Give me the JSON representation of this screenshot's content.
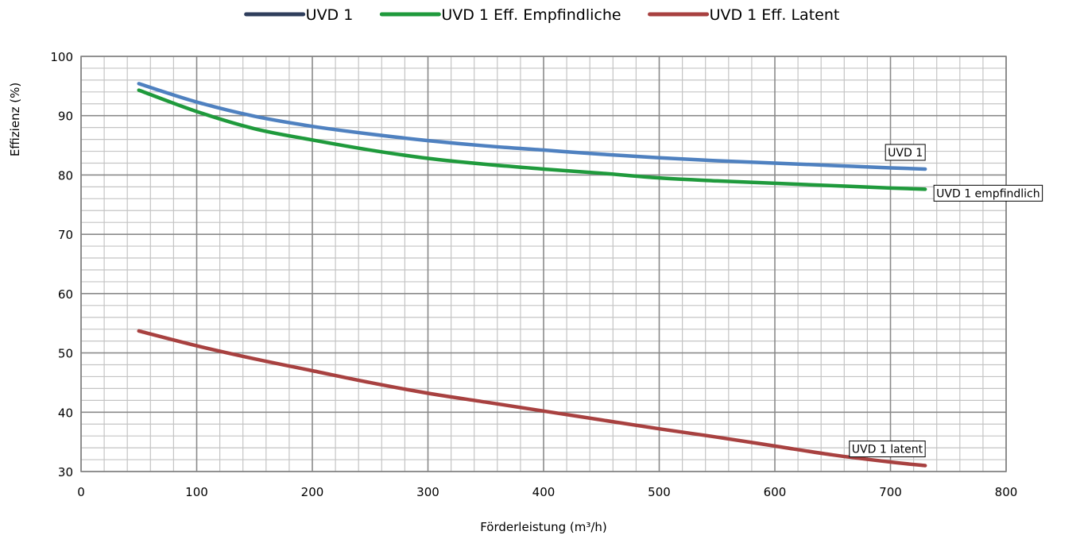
{
  "chart_data": {
    "type": "line",
    "xlabel": "Förderleistung (m³/h)",
    "ylabel": "Effizienz (%)",
    "xlim": [
      0,
      800
    ],
    "ylim": [
      30,
      100
    ],
    "x_ticks": [
      0,
      100,
      200,
      300,
      400,
      500,
      600,
      700,
      800
    ],
    "y_ticks": [
      30,
      40,
      50,
      60,
      70,
      80,
      90,
      100
    ],
    "grid": true,
    "legend_position": "top",
    "legend": [
      {
        "label": "UVD 1",
        "color": "#2f3e5c"
      },
      {
        "label": "UVD 1 Eff. Empfindliche",
        "color": "#1f9a3c"
      },
      {
        "label": "UVD 1 Eff. Latent",
        "color": "#a84140"
      }
    ],
    "series": [
      {
        "key": "uvd1",
        "color": "#4f81c0",
        "x": [
          50,
          100,
          150,
          200,
          250,
          300,
          350,
          400,
          450,
          500,
          550,
          600,
          650,
          700,
          730
        ],
        "y": [
          95.4,
          92.3,
          89.9,
          88.2,
          86.9,
          85.8,
          84.9,
          84.2,
          83.5,
          82.9,
          82.4,
          82.0,
          81.6,
          81.2,
          81.0
        ]
      },
      {
        "key": "sensible",
        "color": "#1f9a3c",
        "x": [
          50,
          100,
          150,
          200,
          250,
          300,
          350,
          400,
          450,
          500,
          550,
          600,
          650,
          700,
          730
        ],
        "y": [
          94.3,
          90.7,
          87.8,
          85.9,
          84.2,
          82.8,
          81.8,
          81.0,
          80.3,
          79.5,
          79.0,
          78.6,
          78.2,
          77.8,
          77.6
        ]
      },
      {
        "key": "latent",
        "color": "#a84140",
        "x": [
          50,
          100,
          150,
          200,
          250,
          300,
          350,
          400,
          450,
          500,
          550,
          600,
          650,
          700,
          730
        ],
        "y": [
          53.7,
          51.2,
          49.0,
          47.0,
          45.0,
          43.2,
          41.7,
          40.2,
          38.7,
          37.2,
          35.8,
          34.3,
          32.8,
          31.6,
          31.0
        ]
      }
    ],
    "annotations": [
      {
        "text": "UVD 1",
        "x": 730,
        "y": 81.0,
        "anchor": "above"
      },
      {
        "text": "UVD 1 empfindlich",
        "x": 730,
        "y": 77.6,
        "anchor": "right"
      },
      {
        "text": "UVD 1 latent",
        "x": 730,
        "y": 31.0,
        "anchor": "above"
      }
    ]
  }
}
